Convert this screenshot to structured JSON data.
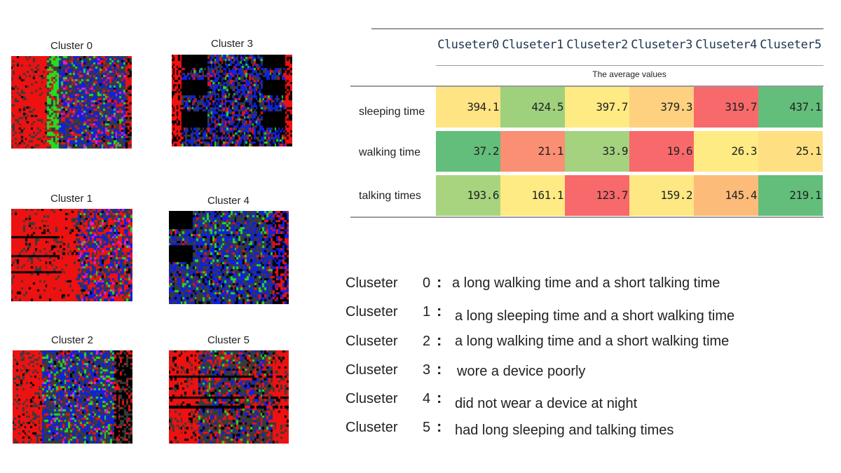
{
  "colors": {
    "red": "#ee1111",
    "blue": "#1020e0",
    "green": "#22dd22",
    "black": "#000000",
    "gray": "#3a3a3a",
    "magenta": "#e020e0",
    "cell_scale": [
      "#f8696b",
      "#fdd17f",
      "#ffeb84",
      "#b1d580",
      "#63be7b"
    ]
  },
  "chart_data": [
    {
      "type": "heatmap",
      "panels": [
        {
          "title": "Cluster 0",
          "pattern": "red-left-green-band-blue-right"
        },
        {
          "title": "Cluster 3",
          "pattern": "black-blocks-blue-stripes"
        },
        {
          "title": "Cluster 1",
          "pattern": "red-dominant-blue-right"
        },
        {
          "title": "Cluster 4",
          "pattern": "blue-center-black-left"
        },
        {
          "title": "Cluster 2",
          "pattern": "red-left-blue-center-green-dots"
        },
        {
          "title": "Cluster 5",
          "pattern": "red-sides-gray-center-black-lines"
        }
      ]
    },
    {
      "type": "table",
      "columns": [
        "Cluseter0",
        "Cluseter1",
        "Cluseter2",
        "Cluseter3",
        "Cluseter4",
        "Cluseter5"
      ],
      "subheader": "The average values",
      "rows": [
        {
          "label": "sleeping time",
          "values": [
            "394.1",
            "424.5",
            "397.7",
            "379.3",
            "319.7",
            "437.1"
          ],
          "colors": [
            "#ffe484",
            "#9fd17c",
            "#ffeb84",
            "#fdd17f",
            "#f8696b",
            "#63be7b"
          ]
        },
        {
          "label": "walking time",
          "values": [
            "37.2",
            "21.1",
            "33.9",
            "19.6",
            "26.3",
            "25.1"
          ],
          "colors": [
            "#63be7b",
            "#fa8f73",
            "#a5d27f",
            "#f8696b",
            "#ffeb84",
            "#fee082"
          ]
        },
        {
          "label": "talking times",
          "values": [
            "193.6",
            "161.1",
            "123.7",
            "159.2",
            "145.4",
            "219.1"
          ],
          "colors": [
            "#a8d47f",
            "#ffeb84",
            "#f8696b",
            "#fde883",
            "#fdbb7a",
            "#63be7b"
          ]
        }
      ]
    }
  ],
  "descriptions": [
    {
      "word": "Cluseter",
      "num": "0",
      "colon": ":",
      "text": "a long walking time and a short talking time"
    },
    {
      "word": "Cluseter",
      "num": "1",
      "colon": ":",
      "text": "a long sleeping time and a short walking time"
    },
    {
      "word": "Cluseter",
      "num": "2",
      "colon": ":",
      "text": "a long walking time and a short walking time"
    },
    {
      "word": "Cluseter",
      "num": "3",
      "colon": ":",
      "text": "wore a device poorly"
    },
    {
      "word": "Cluseter",
      "num": "4",
      "colon": ":",
      "text": "did not wear a device at night"
    },
    {
      "word": "Cluseter",
      "num": "5",
      "colon": ":",
      "text": "had long sleeping and talking times"
    }
  ]
}
